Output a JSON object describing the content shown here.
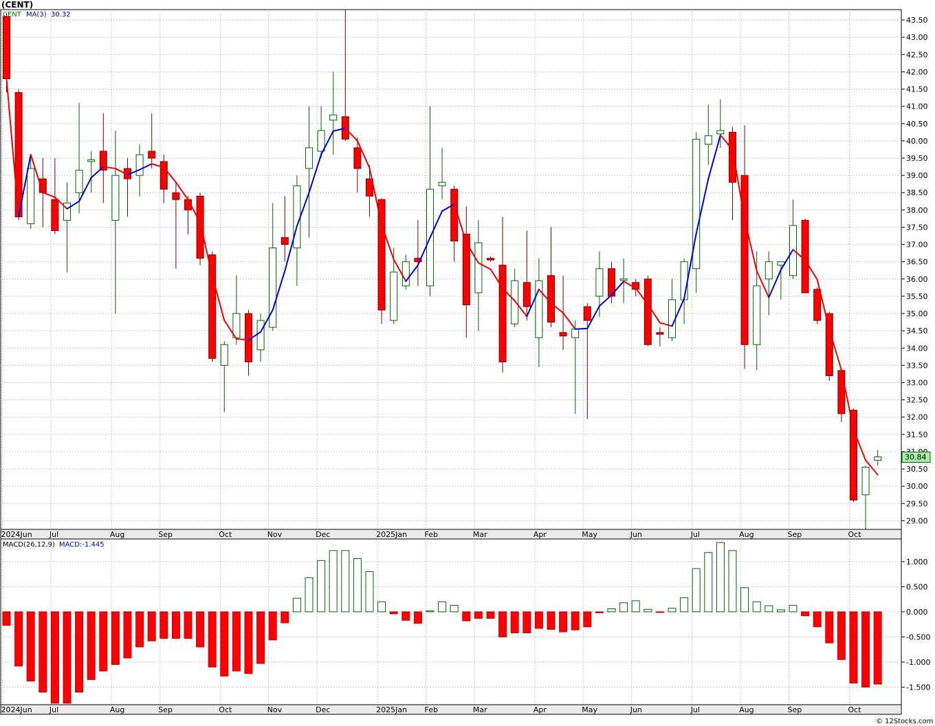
{
  "title": "(CENT)",
  "watermark": "© 12Stocks.com",
  "price_panel": {
    "symbol_label": "CENT",
    "ma_label": "MA(3)",
    "ma_value": "30.32",
    "last_price": "30.84"
  },
  "macd_panel": {
    "label": "MACD(26,12,9)",
    "value_label": "MACD:-1.445"
  },
  "colors": {
    "up_candle": "#ffffff",
    "up_outline": "#006400",
    "down_candle": "#ff0000",
    "ma_up": "#0000dd",
    "ma_down": "#ee0000",
    "grid": "#c8c8c8",
    "panel_bg": "#ffffff",
    "last_price_bg": "#a8f0a8"
  },
  "chart_data": [
    {
      "type": "candlestick",
      "ylim": [
        28.75,
        43.8
      ],
      "y_ticks": [
        "43.50",
        "43.00",
        "42.50",
        "42.00",
        "41.50",
        "41.00",
        "40.50",
        "40.00",
        "39.50",
        "39.00",
        "38.50",
        "38.00",
        "37.50",
        "37.00",
        "36.50",
        "36.00",
        "35.50",
        "35.00",
        "34.50",
        "34.00",
        "33.50",
        "33.00",
        "32.50",
        "32.00",
        "31.50",
        "31.00",
        "30.50",
        "30.00",
        "29.50",
        "29.00"
      ],
      "x_labels": [
        {
          "label": "2024Jun",
          "i": 0
        },
        {
          "label": "Jul",
          "i": 4
        },
        {
          "label": "Aug",
          "i": 9
        },
        {
          "label": "Sep",
          "i": 13
        },
        {
          "label": "Oct",
          "i": 18
        },
        {
          "label": "Nov",
          "i": 22
        },
        {
          "label": "Dec",
          "i": 26
        },
        {
          "label": "2025Jan",
          "i": 31
        },
        {
          "label": "Feb",
          "i": 35
        },
        {
          "label": "Mar",
          "i": 39
        },
        {
          "label": "Apr",
          "i": 44
        },
        {
          "label": "May",
          "i": 48
        },
        {
          "label": "Jun",
          "i": 52
        },
        {
          "label": "Jul",
          "i": 57
        },
        {
          "label": "Aug",
          "i": 61
        },
        {
          "label": "Sep",
          "i": 65
        },
        {
          "label": "Oct",
          "i": 70
        }
      ],
      "candles": [
        {
          "o": 43.6,
          "h": 43.7,
          "l": 41.4,
          "c": 41.8
        },
        {
          "o": 41.4,
          "h": 41.5,
          "l": 37.7,
          "c": 37.8
        },
        {
          "o": 37.6,
          "h": 39.5,
          "l": 37.45,
          "c": 39.2
        },
        {
          "o": 38.9,
          "h": 39.5,
          "l": 37.5,
          "c": 38.5
        },
        {
          "o": 38.3,
          "h": 39.5,
          "l": 37.3,
          "c": 37.4
        },
        {
          "o": 37.7,
          "h": 38.8,
          "l": 36.2,
          "c": 38.2
        },
        {
          "o": 38.5,
          "h": 41.1,
          "l": 37.9,
          "c": 39.15
        },
        {
          "o": 39.4,
          "h": 39.7,
          "l": 38.5,
          "c": 39.45
        },
        {
          "o": 39.7,
          "h": 40.8,
          "l": 38.2,
          "c": 39.15
        },
        {
          "o": 37.7,
          "h": 40.3,
          "l": 35.0,
          "c": 39.0
        },
        {
          "o": 39.2,
          "h": 39.5,
          "l": 37.8,
          "c": 38.9
        },
        {
          "o": 39.0,
          "h": 39.9,
          "l": 38.4,
          "c": 39.6
        },
        {
          "o": 39.7,
          "h": 40.8,
          "l": 39.2,
          "c": 39.5
        },
        {
          "o": 39.4,
          "h": 39.6,
          "l": 38.2,
          "c": 38.6
        },
        {
          "o": 38.5,
          "h": 38.8,
          "l": 36.3,
          "c": 38.3
        },
        {
          "o": 38.3,
          "h": 38.4,
          "l": 37.3,
          "c": 38.0
        },
        {
          "o": 38.4,
          "h": 38.5,
          "l": 36.4,
          "c": 36.6
        },
        {
          "o": 36.7,
          "h": 36.8,
          "l": 33.6,
          "c": 33.7
        },
        {
          "o": 33.5,
          "h": 34.2,
          "l": 32.15,
          "c": 34.1
        },
        {
          "o": 34.3,
          "h": 36.1,
          "l": 34.1,
          "c": 35.0
        },
        {
          "o": 35.0,
          "h": 35.1,
          "l": 33.2,
          "c": 33.6
        },
        {
          "o": 33.95,
          "h": 35.0,
          "l": 33.6,
          "c": 34.8
        },
        {
          "o": 34.6,
          "h": 38.2,
          "l": 34.5,
          "c": 36.9
        },
        {
          "o": 37.2,
          "h": 38.4,
          "l": 36.5,
          "c": 37.0
        },
        {
          "o": 36.9,
          "h": 39.0,
          "l": 35.8,
          "c": 38.7
        },
        {
          "o": 39.2,
          "h": 41.0,
          "l": 37.2,
          "c": 39.8
        },
        {
          "o": 39.7,
          "h": 41.0,
          "l": 39.5,
          "c": 40.3
        },
        {
          "o": 40.6,
          "h": 42.0,
          "l": 39.6,
          "c": 40.75
        },
        {
          "o": 40.7,
          "h": 43.8,
          "l": 40.0,
          "c": 40.05
        },
        {
          "o": 39.8,
          "h": 40.1,
          "l": 38.5,
          "c": 39.2
        },
        {
          "o": 38.9,
          "h": 39.3,
          "l": 37.8,
          "c": 38.4
        },
        {
          "o": 38.3,
          "h": 38.35,
          "l": 34.7,
          "c": 35.1
        },
        {
          "o": 34.8,
          "h": 36.9,
          "l": 34.7,
          "c": 36.2
        },
        {
          "o": 35.8,
          "h": 36.7,
          "l": 35.7,
          "c": 36.5
        },
        {
          "o": 36.6,
          "h": 37.7,
          "l": 35.8,
          "c": 36.5
        },
        {
          "o": 35.8,
          "h": 41.0,
          "l": 35.5,
          "c": 38.6
        },
        {
          "o": 38.7,
          "h": 39.8,
          "l": 38.3,
          "c": 38.8
        },
        {
          "o": 38.6,
          "h": 38.7,
          "l": 36.5,
          "c": 37.1
        },
        {
          "o": 37.3,
          "h": 38.1,
          "l": 34.3,
          "c": 35.25
        },
        {
          "o": 35.6,
          "h": 37.7,
          "l": 34.5,
          "c": 37.05
        },
        {
          "o": 36.6,
          "h": 36.65,
          "l": 36.5,
          "c": 36.55
        },
        {
          "o": 36.4,
          "h": 37.8,
          "l": 33.3,
          "c": 33.6
        },
        {
          "o": 34.7,
          "h": 36.3,
          "l": 34.6,
          "c": 35.95
        },
        {
          "o": 35.9,
          "h": 37.4,
          "l": 34.8,
          "c": 35.2
        },
        {
          "o": 34.3,
          "h": 36.6,
          "l": 33.45,
          "c": 35.95
        },
        {
          "o": 36.1,
          "h": 37.5,
          "l": 34.6,
          "c": 34.75
        },
        {
          "o": 34.45,
          "h": 36.1,
          "l": 33.95,
          "c": 34.35
        },
        {
          "o": 34.3,
          "h": 34.8,
          "l": 32.1,
          "c": 34.55
        },
        {
          "o": 35.2,
          "h": 35.3,
          "l": 31.95,
          "c": 34.8
        },
        {
          "o": 35.5,
          "h": 36.8,
          "l": 34.9,
          "c": 36.3
        },
        {
          "o": 36.3,
          "h": 36.5,
          "l": 35.3,
          "c": 35.5
        },
        {
          "o": 36.0,
          "h": 36.6,
          "l": 35.3,
          "c": 36.0
        },
        {
          "o": 35.9,
          "h": 36.0,
          "l": 35.5,
          "c": 35.7
        },
        {
          "o": 36.0,
          "h": 36.1,
          "l": 34.05,
          "c": 34.1
        },
        {
          "o": 34.45,
          "h": 34.6,
          "l": 34.05,
          "c": 34.4
        },
        {
          "o": 34.3,
          "h": 36.0,
          "l": 34.2,
          "c": 35.4
        },
        {
          "o": 35.4,
          "h": 36.6,
          "l": 34.7,
          "c": 36.5
        },
        {
          "o": 36.3,
          "h": 40.25,
          "l": 35.6,
          "c": 40.05
        },
        {
          "o": 39.9,
          "h": 41.05,
          "l": 39.3,
          "c": 40.15
        },
        {
          "o": 40.2,
          "h": 41.2,
          "l": 39.8,
          "c": 40.3
        },
        {
          "o": 40.25,
          "h": 40.4,
          "l": 37.7,
          "c": 38.8
        },
        {
          "o": 39.0,
          "h": 40.45,
          "l": 33.4,
          "c": 34.1
        },
        {
          "o": 34.1,
          "h": 36.8,
          "l": 33.35,
          "c": 35.8
        },
        {
          "o": 36.0,
          "h": 36.8,
          "l": 34.95,
          "c": 36.5
        },
        {
          "o": 36.4,
          "h": 36.5,
          "l": 35.4,
          "c": 36.5
        },
        {
          "o": 36.1,
          "h": 38.3,
          "l": 36.0,
          "c": 37.55
        },
        {
          "o": 37.7,
          "h": 37.75,
          "l": 35.6,
          "c": 35.6
        },
        {
          "o": 35.7,
          "h": 35.75,
          "l": 34.7,
          "c": 34.8
        },
        {
          "o": 35.0,
          "h": 35.05,
          "l": 33.05,
          "c": 33.2
        },
        {
          "o": 33.35,
          "h": 33.4,
          "l": 31.85,
          "c": 32.1
        },
        {
          "o": 32.2,
          "h": 32.25,
          "l": 29.55,
          "c": 29.6
        },
        {
          "o": 29.75,
          "h": 30.6,
          "l": 28.75,
          "c": 30.55
        },
        {
          "o": 30.75,
          "h": 31.05,
          "l": 30.6,
          "c": 30.85
        }
      ]
    },
    {
      "type": "bar",
      "ylim": [
        -1.85,
        1.45
      ],
      "y_ticks": [
        "1.000",
        "0.500",
        "0.000",
        "-0.500",
        "-1.000",
        "-1.500"
      ],
      "values": [
        -0.27,
        -1.08,
        -1.38,
        -1.6,
        -1.82,
        -1.82,
        -1.6,
        -1.35,
        -1.18,
        -1.05,
        -0.92,
        -0.7,
        -0.58,
        -0.53,
        -0.53,
        -0.53,
        -0.7,
        -1.1,
        -1.28,
        -1.18,
        -1.23,
        -1.03,
        -0.56,
        -0.22,
        0.27,
        0.68,
        1.02,
        1.22,
        1.22,
        1.06,
        0.8,
        0.2,
        -0.04,
        -0.17,
        -0.23,
        0.02,
        0.2,
        0.13,
        -0.18,
        -0.13,
        -0.13,
        -0.5,
        -0.42,
        -0.42,
        -0.33,
        -0.35,
        -0.4,
        -0.36,
        -0.3,
        -0.02,
        0.06,
        0.18,
        0.22,
        0.05,
        -0.01,
        0.07,
        0.28,
        0.86,
        1.18,
        1.38,
        1.22,
        0.48,
        0.2,
        0.12,
        0.04,
        0.13,
        -0.08,
        -0.3,
        -0.62,
        -0.95,
        -1.42,
        -1.5,
        -1.44
      ]
    }
  ]
}
